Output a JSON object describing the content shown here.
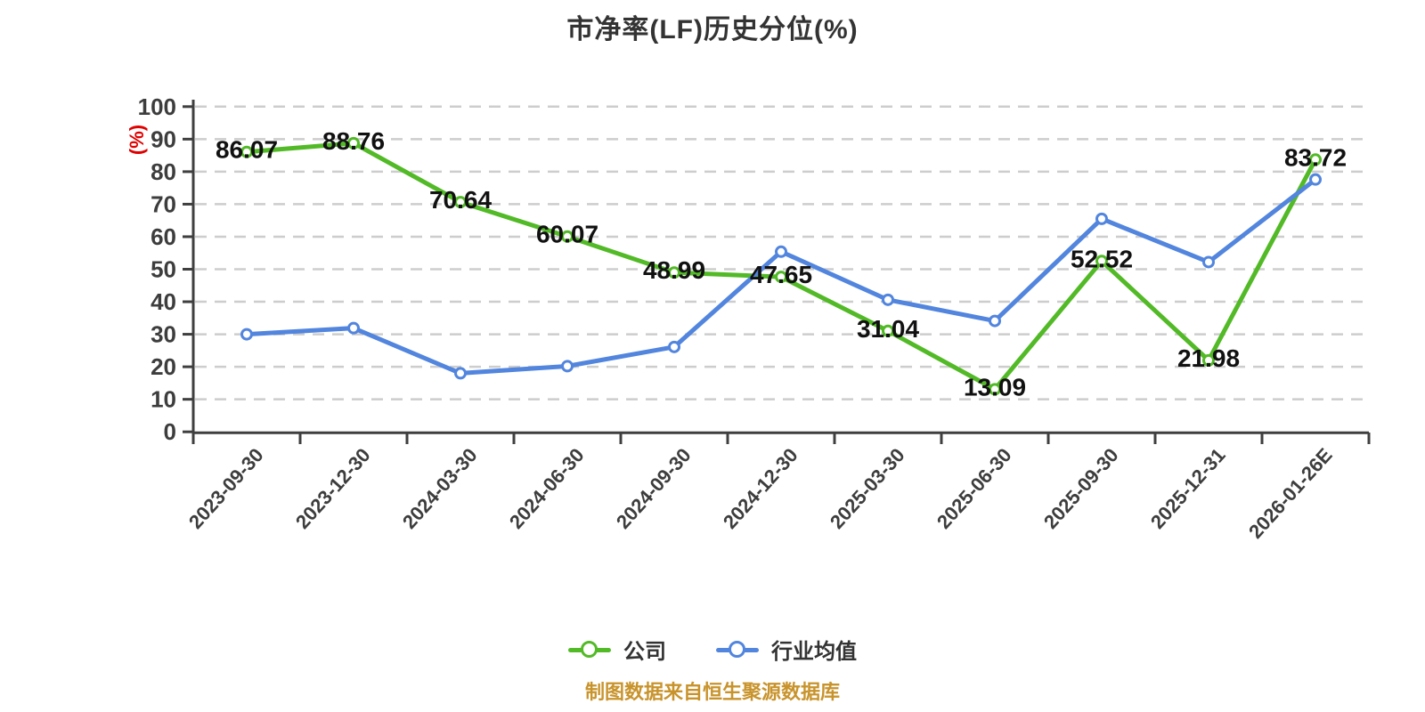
{
  "title": "市净率(LF)历史分位(%)",
  "y_axis_unit_label": "(%)",
  "footer": {
    "source_note": "制图数据来自恒生聚源数据库"
  },
  "legend": {
    "items": [
      {
        "label": "公司",
        "color": "#52ba26"
      },
      {
        "label": "行业均值",
        "color": "#5285de"
      }
    ]
  },
  "colors": {
    "company_line": "#52ba26",
    "industry_line": "#5285de",
    "axis": "#3f3f3f",
    "gridline": "#cdcdcd",
    "tick_label": "#3d3d3d",
    "data_label": "#111111",
    "title_text": "#333333",
    "unit_label_red": "#e00000",
    "footer_orange": "#c8932b",
    "marker_fill": "#ffffff"
  },
  "chart_data": {
    "type": "line",
    "title": "市净率(LF)历史分位(%)",
    "categories": [
      "2023-09-30",
      "2023-12-30",
      "2024-03-30",
      "2024-06-30",
      "2024-09-30",
      "2024-12-30",
      "2025-03-30",
      "2025-06-30",
      "2025-09-30",
      "2025-12-31",
      "2026-01-26E"
    ],
    "series": [
      {
        "name": "公司",
        "color": "#52ba26",
        "values": [
          86.07,
          88.76,
          70.64,
          60.07,
          48.99,
          47.65,
          31.04,
          13.09,
          52.52,
          21.98,
          83.72
        ],
        "show_labels": true
      },
      {
        "name": "行业均值",
        "color": "#5285de",
        "values": [
          30.0,
          31.9,
          18.0,
          20.2,
          26.1,
          55.4,
          40.6,
          34.1,
          65.5,
          52.2,
          77.6
        ],
        "show_labels": false
      }
    ],
    "ylabel": "(%)",
    "ylim": [
      0,
      100
    ],
    "y_ticks": [
      0,
      10,
      20,
      30,
      40,
      50,
      60,
      70,
      80,
      90,
      100
    ],
    "grid": "dashed-horizontal",
    "legend_position": "bottom"
  }
}
